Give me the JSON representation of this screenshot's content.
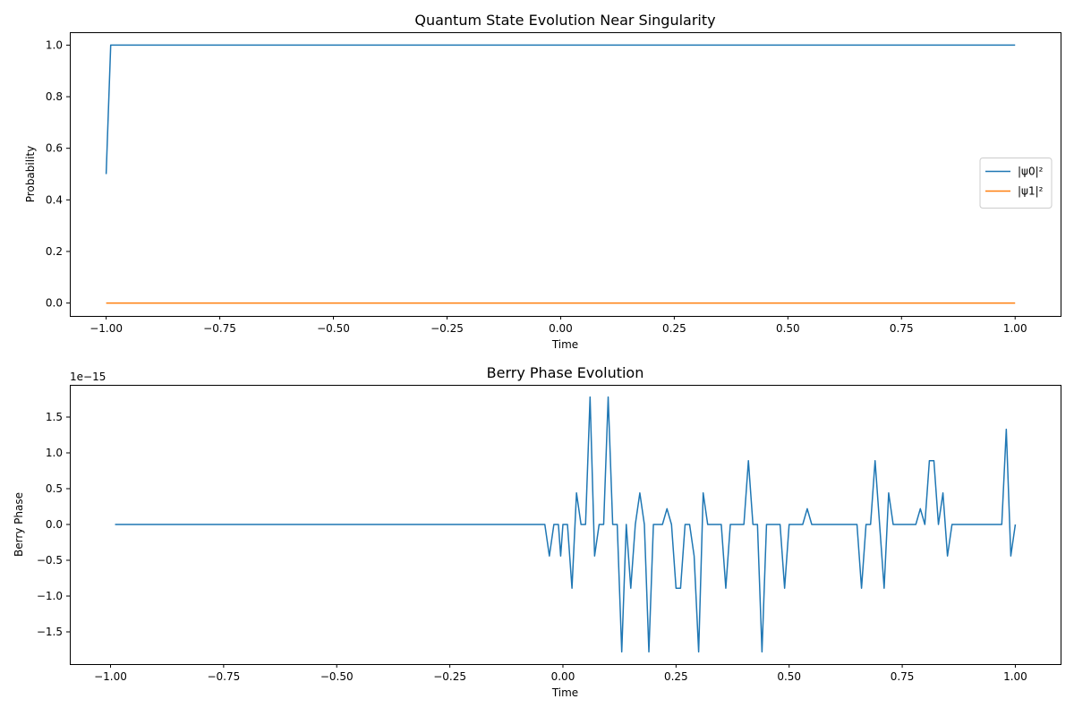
{
  "chart_data": [
    {
      "type": "line",
      "title": "Quantum State Evolution Near Singularity",
      "xlabel": "Time",
      "ylabel": "Probability",
      "xlim": [
        -1.08,
        1.1
      ],
      "ylim": [
        -0.05,
        1.05
      ],
      "xticks": [
        -1.0,
        -0.75,
        -0.5,
        -0.25,
        0.0,
        0.25,
        0.5,
        0.75,
        1.0
      ],
      "xtick_labels": [
        "−1.00",
        "−0.75",
        "−0.50",
        "−0.25",
        "0.00",
        "0.25",
        "0.50",
        "0.75",
        "1.00"
      ],
      "yticks": [
        0.0,
        0.2,
        0.4,
        0.6,
        0.8,
        1.0
      ],
      "ytick_labels": [
        "0.0",
        "0.2",
        "0.4",
        "0.6",
        "0.8",
        "1.0"
      ],
      "grid": false,
      "legend": "center-right",
      "series": [
        {
          "name": "|ψ0|²",
          "color": "#1f77b4",
          "x": [
            -1.0,
            -0.99,
            1.0
          ],
          "y": [
            0.5,
            1.0,
            1.0
          ]
        },
        {
          "name": "|ψ1|²",
          "color": "#ff7f0e",
          "x": [
            -1.0,
            1.0
          ],
          "y": [
            0.0,
            0.0
          ]
        }
      ]
    },
    {
      "type": "line",
      "title": "Berry Phase Evolution",
      "xlabel": "Time",
      "ylabel": "Berry Phase",
      "offset_label": "1e−15",
      "xlim": [
        -1.09,
        1.1
      ],
      "ylim": [
        -1.95,
        1.95
      ],
      "xticks": [
        -1.0,
        -0.75,
        -0.5,
        -0.25,
        0.0,
        0.25,
        0.5,
        0.75,
        1.0
      ],
      "xtick_labels": [
        "−1.00",
        "−0.75",
        "−0.50",
        "−0.25",
        "0.00",
        "0.25",
        "0.50",
        "0.75",
        "1.00"
      ],
      "yticks": [
        -1.5,
        -1.0,
        -0.5,
        0.0,
        0.5,
        1.0,
        1.5
      ],
      "ytick_labels": [
        "−1.5",
        "−1.0",
        "−0.5",
        "0.0",
        "0.5",
        "1.0",
        "1.5"
      ],
      "grid": false,
      "series": [
        {
          "color": "#1f77b4",
          "x": [
            -0.99,
            -0.04,
            -0.03,
            -0.02,
            -0.01,
            -0.005,
            0.0,
            0.01,
            0.02,
            0.03,
            0.04,
            0.05,
            0.06,
            0.07,
            0.08,
            0.09,
            0.1,
            0.11,
            0.12,
            0.13,
            0.14,
            0.15,
            0.16,
            0.17,
            0.18,
            0.19,
            0.2,
            0.21,
            0.22,
            0.23,
            0.24,
            0.25,
            0.26,
            0.27,
            0.28,
            0.29,
            0.3,
            0.31,
            0.32,
            0.33,
            0.34,
            0.35,
            0.36,
            0.37,
            0.38,
            0.39,
            0.4,
            0.41,
            0.42,
            0.43,
            0.44,
            0.45,
            0.46,
            0.47,
            0.48,
            0.49,
            0.5,
            0.51,
            0.52,
            0.53,
            0.54,
            0.55,
            0.56,
            0.57,
            0.58,
            0.59,
            0.6,
            0.61,
            0.62,
            0.63,
            0.64,
            0.65,
            0.66,
            0.67,
            0.68,
            0.69,
            0.7,
            0.71,
            0.72,
            0.73,
            0.74,
            0.75,
            0.76,
            0.77,
            0.78,
            0.79,
            0.8,
            0.81,
            0.82,
            0.83,
            0.84,
            0.85,
            0.86,
            0.87,
            0.88,
            0.89,
            0.9,
            0.91,
            0.92,
            0.93,
            0.94,
            0.95,
            0.96,
            0.97,
            0.98,
            0.99,
            1.0
          ],
          "y": [
            0.0,
            0.0,
            -0.44,
            0.0,
            0.0,
            -0.44,
            0.0,
            0.0,
            -0.89,
            0.44,
            0.0,
            0.0,
            1.78,
            -0.44,
            0.0,
            0.0,
            1.78,
            0.0,
            0.0,
            -1.78,
            0.0,
            -0.89,
            0.0,
            0.44,
            0.0,
            -1.78,
            0.0,
            0.0,
            0.0,
            0.22,
            0.0,
            -0.89,
            -0.89,
            0.0,
            0.0,
            -0.44,
            -1.78,
            0.44,
            0.0,
            0.0,
            0.0,
            0.0,
            -0.89,
            0.0,
            0.0,
            0.0,
            0.0,
            0.89,
            0.0,
            0.0,
            -1.78,
            0.0,
            0.0,
            0.0,
            0.0,
            -0.89,
            0.0,
            0.0,
            0.0,
            0.0,
            0.22,
            0.0,
            0.0,
            0.0,
            0.0,
            0.0,
            0.0,
            0.0,
            0.0,
            0.0,
            0.0,
            0.0,
            -0.89,
            0.0,
            0.0,
            0.89,
            0.0,
            -0.89,
            0.44,
            0.0,
            0.0,
            0.0,
            0.0,
            0.0,
            0.0,
            0.22,
            0.0,
            0.89,
            0.89,
            0.0,
            0.44,
            -0.44,
            0.0,
            0.0,
            0.0,
            0.0,
            0.0,
            0.0,
            0.0,
            0.0,
            0.0,
            0.0,
            0.0,
            0.0,
            1.33,
            -0.44,
            0.0
          ]
        }
      ]
    }
  ]
}
